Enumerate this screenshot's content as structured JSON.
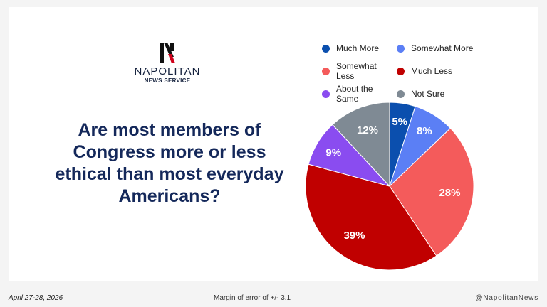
{
  "brand": {
    "name": "NAPOLITAN",
    "subtitle": "NEWS SERVICE",
    "mark_letter": "N"
  },
  "question": "Are most members of Congress more or less ethical than most everyday Americans?",
  "footer": {
    "date": "April 27-28, 2026",
    "margin_of_error": "Margin of error of +/- 3.1",
    "handle": "@NapolitanNews"
  },
  "chart_data": {
    "type": "pie",
    "categories": [
      "Much More",
      "Somewhat More",
      "Somewhat Less",
      "Much Less",
      "About the Same",
      "Not Sure"
    ],
    "values": [
      5,
      8,
      28,
      39,
      9,
      12
    ],
    "labels": [
      "5%",
      "8%",
      "28%",
      "39%",
      "9%",
      "12%"
    ],
    "colors": [
      "#0b4fae",
      "#5b7ff5",
      "#f45b5b",
      "#c00000",
      "#8a4cf0",
      "#7f8a94"
    ],
    "legend_placement": "top"
  }
}
